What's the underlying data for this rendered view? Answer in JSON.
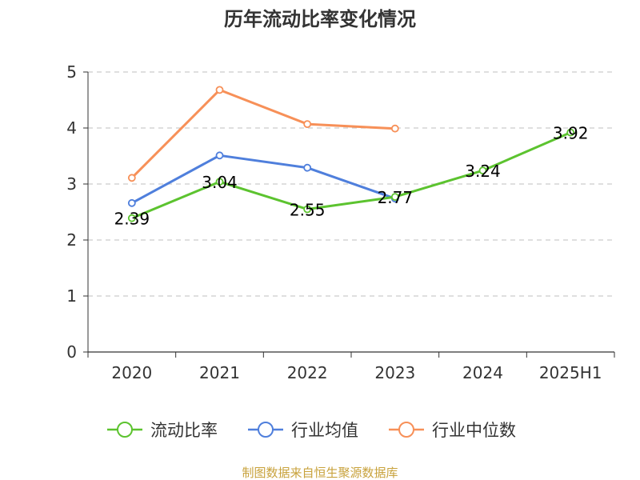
{
  "chart_data": {
    "type": "line",
    "title": "历年流动比率变化情况",
    "categories": [
      "2020",
      "2021",
      "2022",
      "2023",
      "2024",
      "2025H1"
    ],
    "ylim": [
      0,
      5
    ],
    "yticks": [
      0,
      1,
      2,
      3,
      4,
      5
    ],
    "grid": true,
    "legend_position": "bottom",
    "series": [
      {
        "name": "流动比率",
        "color": "#5cc32f",
        "values": [
          2.39,
          3.04,
          2.55,
          2.77,
          3.24,
          3.92
        ],
        "labels": [
          "2.39",
          "3.04",
          "2.55",
          "2.77",
          "3.24",
          "3.92"
        ],
        "show_labels": true
      },
      {
        "name": "行业均值",
        "color": "#4f7fdc",
        "values": [
          2.66,
          3.51,
          3.29,
          2.74,
          null,
          null
        ],
        "show_labels": false
      },
      {
        "name": "行业中位数",
        "color": "#f79058",
        "values": [
          3.11,
          4.68,
          4.07,
          3.99,
          null,
          null
        ],
        "show_labels": false
      }
    ]
  },
  "source_text": "制图数据来自恒生聚源数据库"
}
